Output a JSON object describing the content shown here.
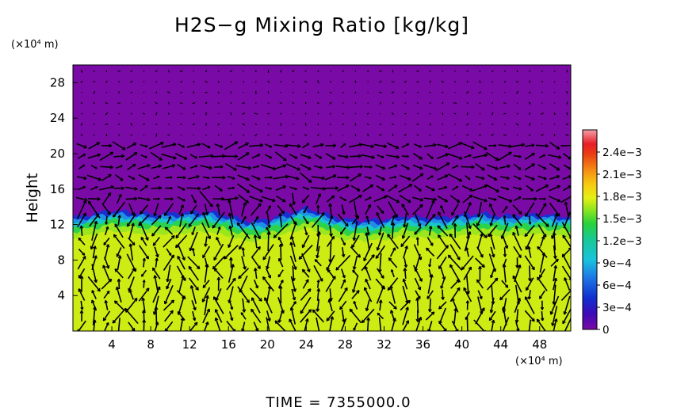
{
  "chart_data": {
    "type": "heatmap",
    "title": "H2S−g Mixing Ratio [kg/kg]",
    "xlabel": "",
    "ylabel": "Height",
    "x_unit": "(×10⁴ m)",
    "y_unit": "(×10⁴ m)",
    "xlim": [
      0,
      51.2
    ],
    "ylim": [
      0,
      30
    ],
    "x_ticks": [
      "4",
      "8",
      "12",
      "16",
      "20",
      "24",
      "28",
      "32",
      "36",
      "40",
      "44",
      "48"
    ],
    "y_ticks": [
      "4",
      "8",
      "12",
      "16",
      "20",
      "24",
      "28"
    ],
    "x_tick_values": [
      4,
      8,
      12,
      16,
      20,
      24,
      28,
      32,
      36,
      40,
      44,
      48
    ],
    "y_tick_values": [
      4,
      8,
      12,
      16,
      20,
      24,
      28
    ],
    "colorbar": {
      "min": 0,
      "max": 0.0027,
      "ticks": [
        "2.4e−3",
        "2.1e−3",
        "1.8e−3",
        "1.5e−3",
        "1.2e−3",
        "9e−4",
        "6e−4",
        "3e−4",
        "0"
      ],
      "tick_values": [
        0.0024,
        0.0021,
        0.0018,
        0.0015,
        0.0012,
        0.0009,
        0.0006,
        0.0003,
        0
      ]
    },
    "field_description_values": {
      "lower_layer_value": 0.00165,
      "upper_layer_value": 0.0,
      "interface_height_profile": [
        [
          0,
          12.8
        ],
        [
          4,
          13.6
        ],
        [
          8,
          13.2
        ],
        [
          12,
          13.4
        ],
        [
          14,
          13.5
        ],
        [
          16,
          13.0
        ],
        [
          18,
          12.4
        ],
        [
          20,
          12.6
        ],
        [
          22,
          13.3
        ],
        [
          24,
          13.9
        ],
        [
          26,
          13.2
        ],
        [
          28,
          12.6
        ],
        [
          30,
          12.5
        ],
        [
          32,
          12.6
        ],
        [
          34,
          13.0
        ],
        [
          36,
          12.8
        ],
        [
          38,
          12.8
        ],
        [
          40,
          13.1
        ],
        [
          42,
          13.3
        ],
        [
          44,
          13.0
        ],
        [
          46,
          13.1
        ],
        [
          48,
          13.2
        ],
        [
          51.2,
          12.9
        ]
      ]
    },
    "vector_field": "wind",
    "time_label": "TIME",
    "time_value": "7355000.0"
  },
  "footer": {
    "text": "TIME  =  7355000.0"
  }
}
